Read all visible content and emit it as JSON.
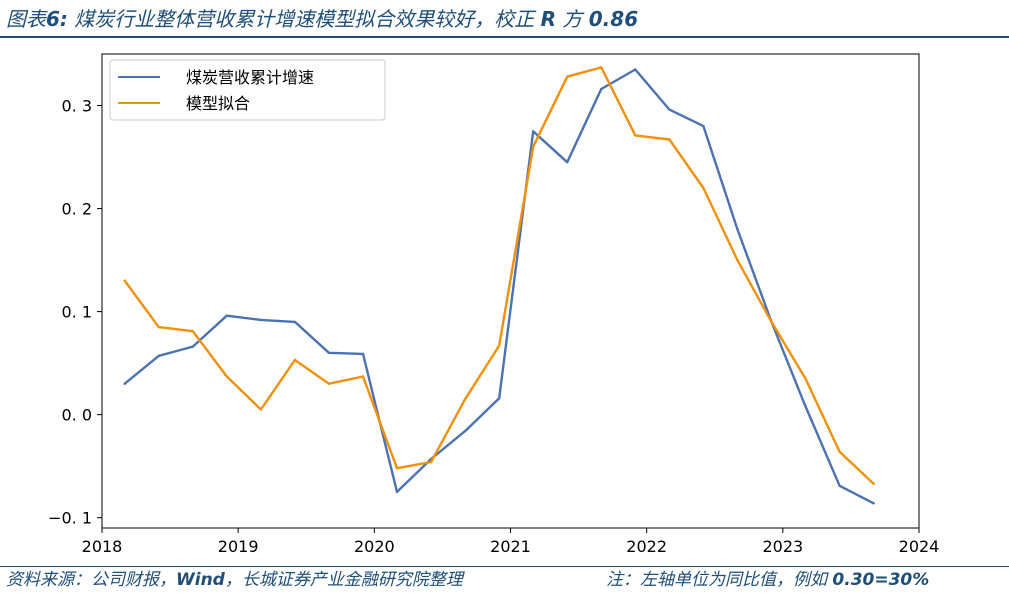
{
  "figure": {
    "title_prefix": "图表",
    "title_number": "6:",
    "title_main": " 煤炭行业整体营收累计增速模型拟合效果较好，校正 ",
    "title_r": "R",
    "title_mid": " 方 ",
    "title_value": "0.86",
    "source_prefix": "资料来源：公司财报，",
    "source_bold": "Wind",
    "source_suffix": "，长城证券产业金融研究院整理",
    "note_prefix": "注：左轴单位为同比值，例如 ",
    "note_bold": "0.30=30%"
  },
  "colors": {
    "title_blue": "#1f4e79",
    "series_actual": "#4c72b0",
    "series_model": "#f0900b",
    "axis": "#000000"
  },
  "chart_data": {
    "type": "line",
    "x_ticks": [
      "2018",
      "2019",
      "2020",
      "2021",
      "2022",
      "2023",
      "2024"
    ],
    "y_ticks": [
      "0. 3",
      "0. 2",
      "0. 1",
      "0. 0",
      "−0. 1"
    ],
    "y_tick_values": [
      0.3,
      0.2,
      0.1,
      0.0,
      -0.1
    ],
    "xlim": [
      2018.0,
      2024.0
    ],
    "ylim": [
      -0.11,
      0.35
    ],
    "legend_position": "top-left",
    "grid": false,
    "series": [
      {
        "name": "煤炭营收累计增速",
        "color": "#4c72b0",
        "x": [
          "2018-03",
          "2018-06",
          "2018-09",
          "2018-12",
          "2019-03",
          "2019-06",
          "2019-09",
          "2019-12",
          "2020-03",
          "2020-06",
          "2020-09",
          "2020-12",
          "2021-03",
          "2021-06",
          "2021-09",
          "2021-12",
          "2022-03",
          "2022-06",
          "2022-09",
          "2022-12",
          "2023-03",
          "2023-06",
          "2023-09"
        ],
        "y": [
          0.03,
          0.057,
          0.066,
          0.096,
          0.092,
          0.09,
          0.06,
          0.059,
          -0.075,
          -0.043,
          -0.016,
          0.016,
          0.275,
          0.245,
          0.316,
          0.335,
          0.296,
          0.28,
          0.18,
          0.09,
          0.008,
          -0.069,
          -0.086
        ]
      },
      {
        "name": "模型拟合",
        "color": "#f0900b",
        "x": [
          "2018-03",
          "2018-06",
          "2018-09",
          "2018-12",
          "2019-03",
          "2019-06",
          "2019-09",
          "2019-12",
          "2020-03",
          "2020-06",
          "2020-09",
          "2020-12",
          "2021-03",
          "2021-06",
          "2021-09",
          "2021-12",
          "2022-03",
          "2022-06",
          "2022-09",
          "2022-12",
          "2023-03",
          "2023-06",
          "2023-09"
        ],
        "y": [
          0.13,
          0.085,
          0.081,
          0.037,
          0.005,
          0.053,
          0.03,
          0.037,
          -0.052,
          -0.046,
          0.015,
          0.067,
          0.26,
          0.328,
          0.337,
          0.271,
          0.267,
          0.22,
          0.15,
          0.09,
          0.035,
          -0.036,
          -0.067
        ]
      }
    ]
  }
}
